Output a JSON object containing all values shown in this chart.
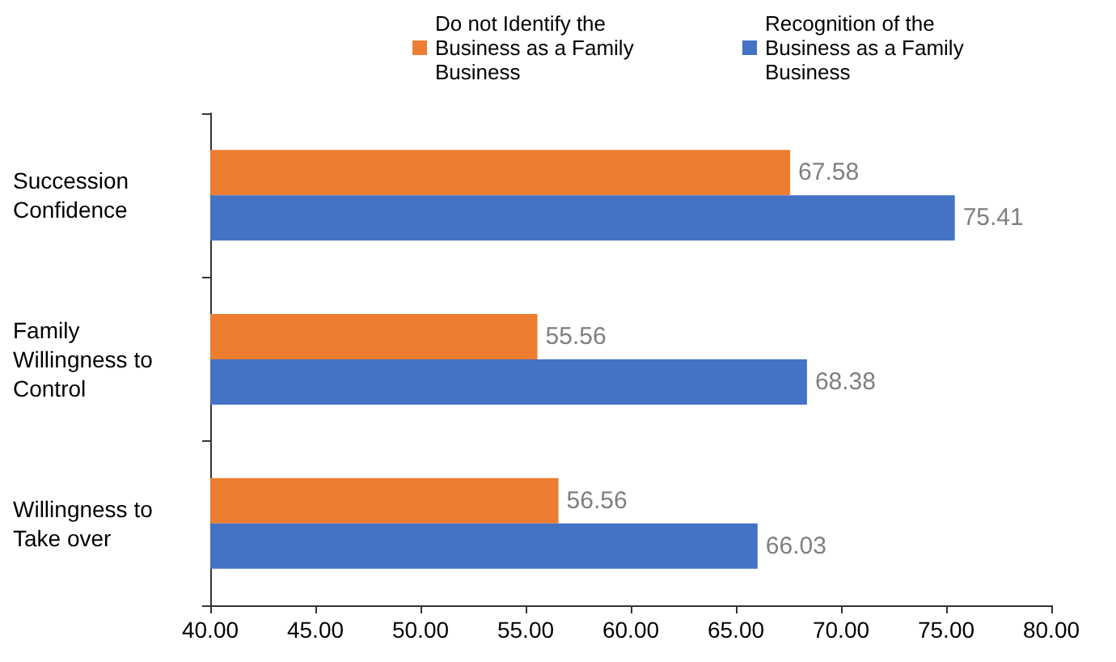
{
  "chart_data": {
    "type": "bar",
    "orientation": "horizontal",
    "categories": [
      "Succession Confidence",
      "Family Willingness to Control",
      "Willingness to Take over"
    ],
    "series": [
      {
        "name": "Do not Identify the Business as a Family Business",
        "color": "#ed7d31",
        "values": [
          67.58,
          55.56,
          56.56
        ]
      },
      {
        "name": "Recognition of the Business as a Family Business",
        "color": "#4472c4",
        "values": [
          75.41,
          68.38,
          66.03
        ]
      }
    ],
    "xlim": [
      40,
      80
    ],
    "xticks": [
      {
        "value": 40,
        "label": "40.00"
      },
      {
        "value": 45,
        "label": "45.00"
      },
      {
        "value": 50,
        "label": "50.00"
      },
      {
        "value": 55,
        "label": "55.00"
      },
      {
        "value": 60,
        "label": "60.00"
      },
      {
        "value": 65,
        "label": "65.00"
      },
      {
        "value": 70,
        "label": "70.00"
      },
      {
        "value": 75,
        "label": "75.00"
      },
      {
        "value": 80,
        "label": "80.00"
      }
    ],
    "data_labels": true,
    "legend": "top",
    "grid": false
  }
}
